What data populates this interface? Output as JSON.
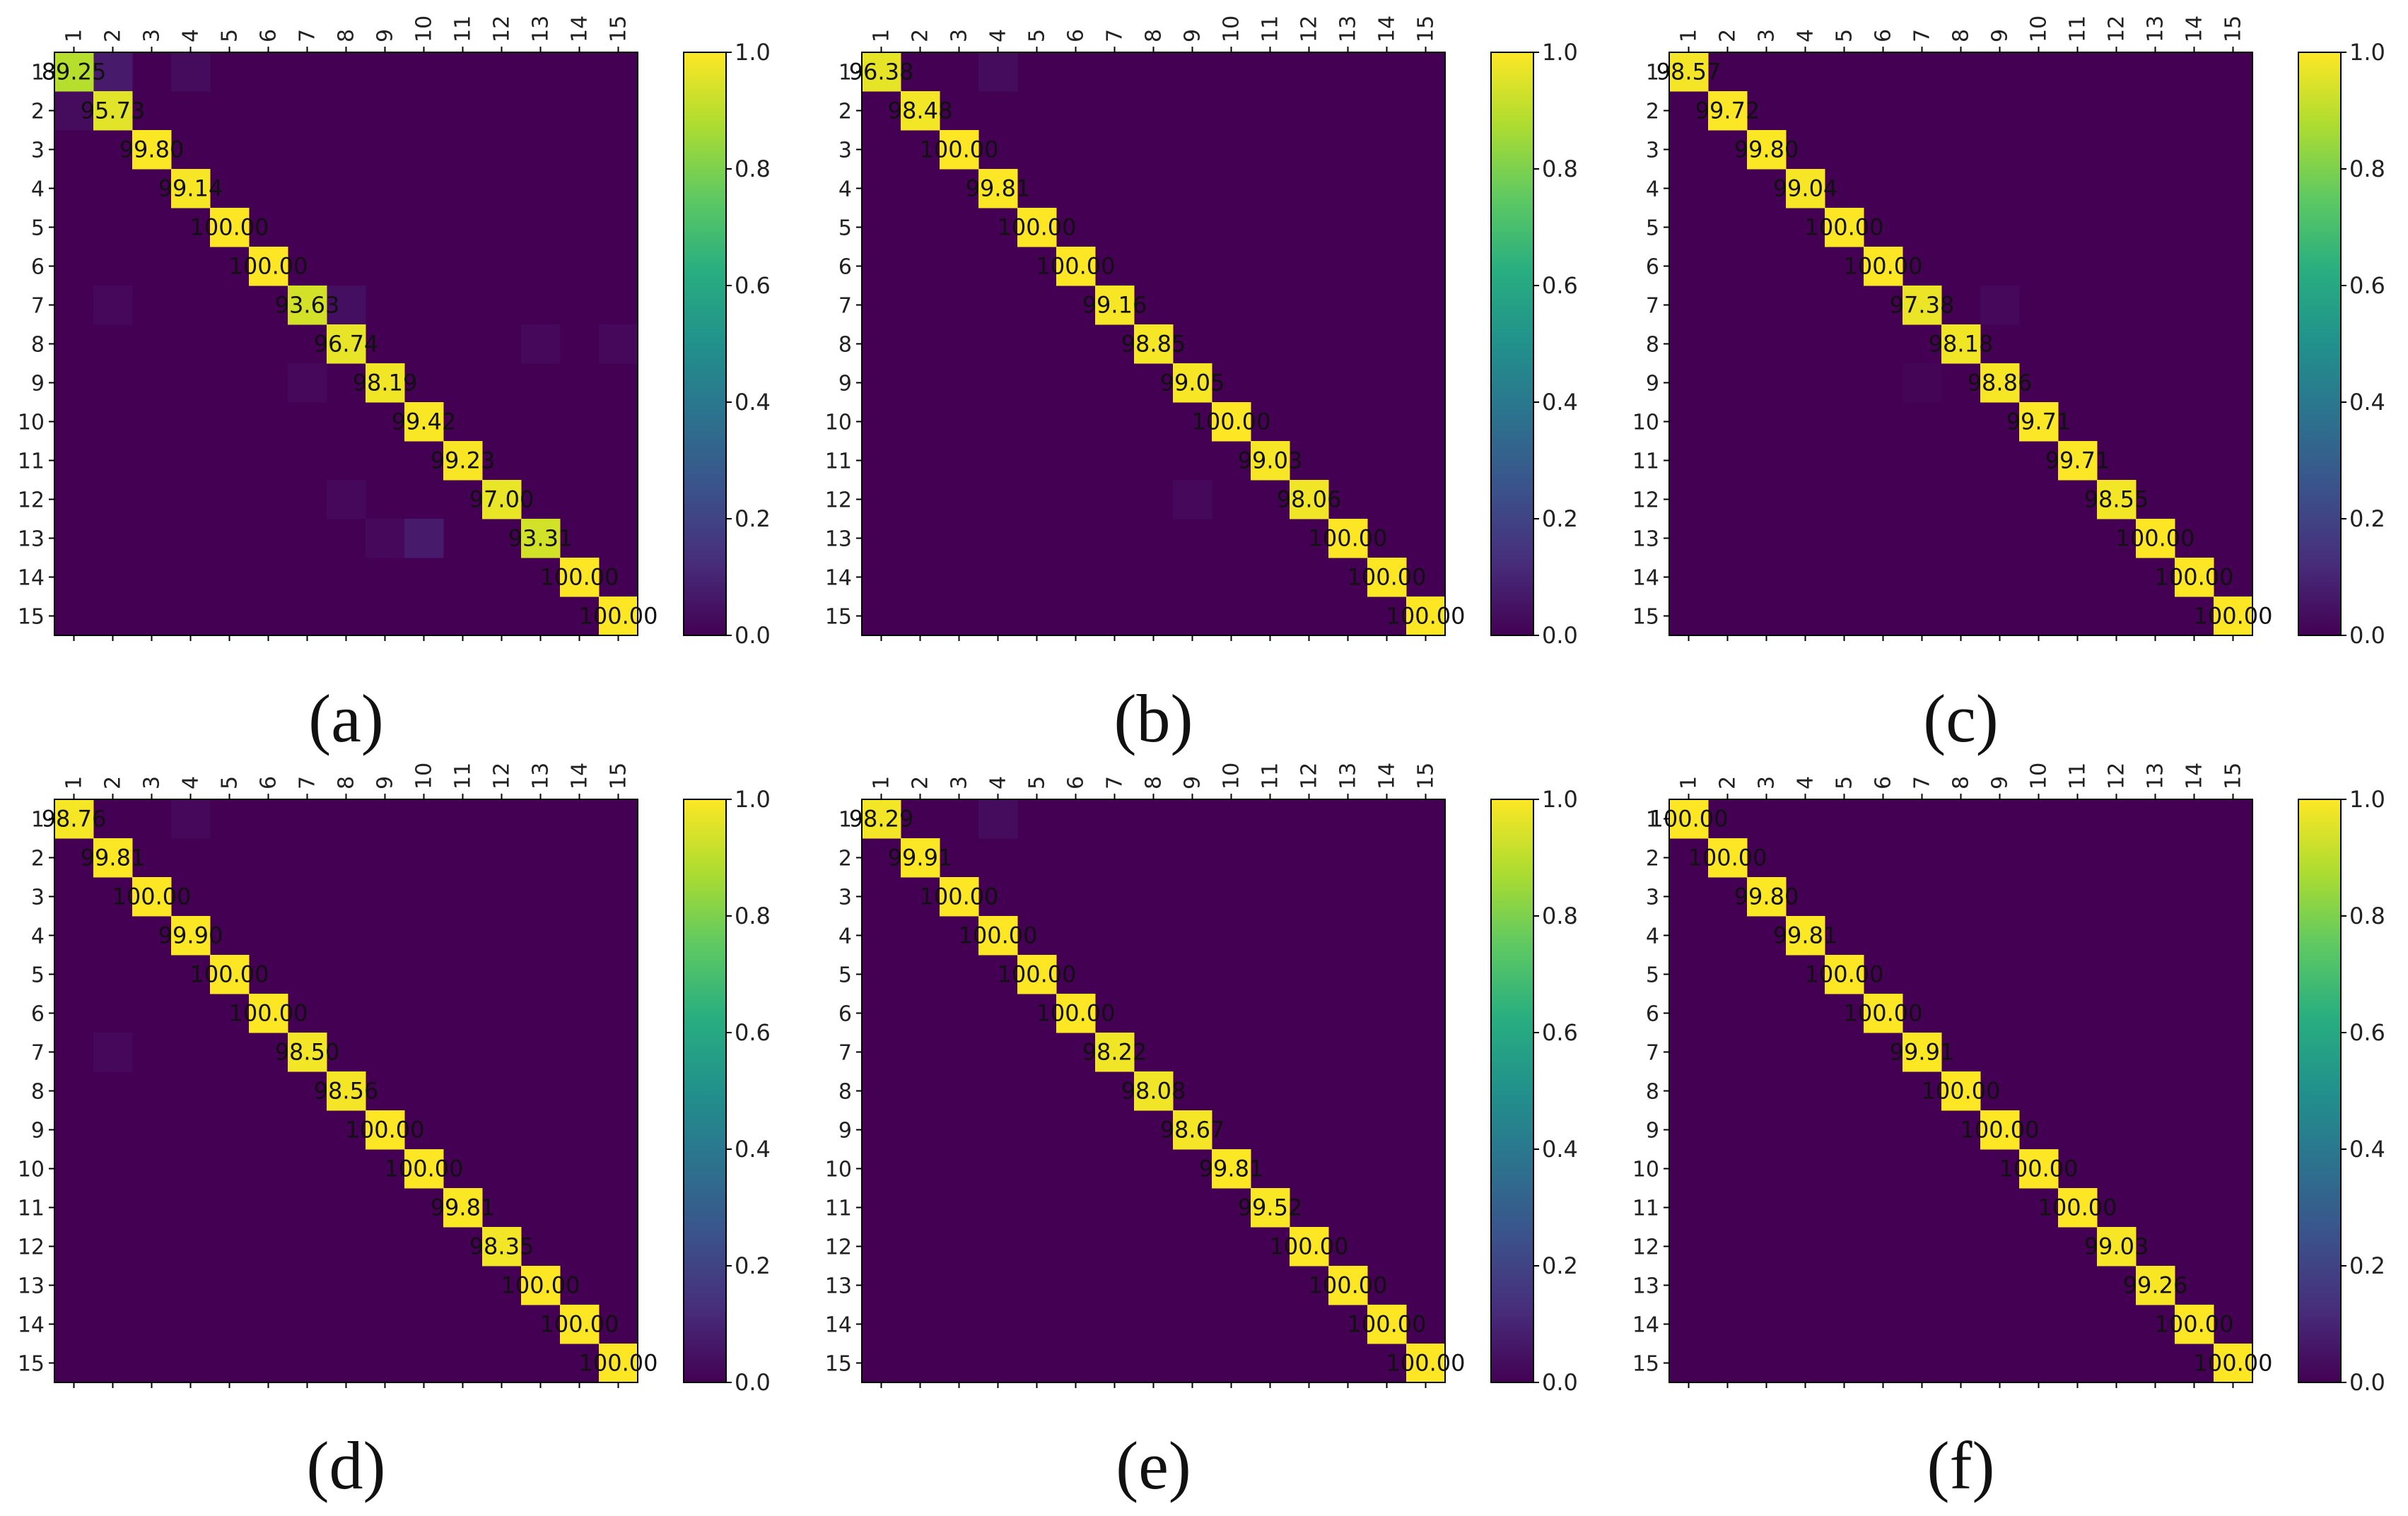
{
  "chart_data": [
    {
      "type": "heatmap",
      "panel_label": "(a)",
      "x_ticks": [
        "1",
        "2",
        "3",
        "4",
        "5",
        "6",
        "7",
        "8",
        "9",
        "10",
        "11",
        "12",
        "13",
        "14",
        "15"
      ],
      "y_ticks": [
        "1",
        "2",
        "3",
        "4",
        "5",
        "6",
        "7",
        "8",
        "9",
        "10",
        "11",
        "12",
        "13",
        "14",
        "15"
      ],
      "diagonal_text": [
        "89.25",
        "95.73",
        "99.80",
        "99.14",
        "100.00",
        "100.00",
        "93.63",
        "96.74",
        "98.19",
        "99.42",
        "99.23",
        "97.00",
        "93.31",
        "100.00",
        "100.00"
      ],
      "diagonal_values": [
        0.8925,
        0.9573,
        0.998,
        0.9914,
        1.0,
        1.0,
        0.9363,
        0.9674,
        0.9819,
        0.9942,
        0.9923,
        0.97,
        0.9331,
        1.0,
        1.0
      ],
      "off_diagonal": [
        {
          "row": 1,
          "col": 2,
          "value": 0.07
        },
        {
          "row": 1,
          "col": 4,
          "value": 0.03
        },
        {
          "row": 2,
          "col": 1,
          "value": 0.03
        },
        {
          "row": 7,
          "col": 2,
          "value": 0.02
        },
        {
          "row": 7,
          "col": 8,
          "value": 0.04
        },
        {
          "row": 8,
          "col": 13,
          "value": 0.02
        },
        {
          "row": 8,
          "col": 15,
          "value": 0.02
        },
        {
          "row": 9,
          "col": 7,
          "value": 0.02
        },
        {
          "row": 12,
          "col": 8,
          "value": 0.02
        },
        {
          "row": 13,
          "col": 9,
          "value": 0.02
        },
        {
          "row": 13,
          "col": 10,
          "value": 0.07
        }
      ],
      "colorbar": {
        "min": 0.0,
        "max": 1.0,
        "ticks": [
          "0.0",
          "0.2",
          "0.4",
          "0.6",
          "0.8",
          "1.0"
        ]
      }
    },
    {
      "type": "heatmap",
      "panel_label": "(b)",
      "x_ticks": [
        "1",
        "2",
        "3",
        "4",
        "5",
        "6",
        "7",
        "8",
        "9",
        "10",
        "11",
        "12",
        "13",
        "14",
        "15"
      ],
      "y_ticks": [
        "1",
        "2",
        "3",
        "4",
        "5",
        "6",
        "7",
        "8",
        "9",
        "10",
        "11",
        "12",
        "13",
        "14",
        "15"
      ],
      "diagonal_text": [
        "96.38",
        "98.48",
        "100.00",
        "99.81",
        "100.00",
        "100.00",
        "99.16",
        "98.85",
        "99.05",
        "100.00",
        "99.03",
        "98.06",
        "100.00",
        "100.00",
        "100.00"
      ],
      "diagonal_values": [
        0.9638,
        0.9848,
        1.0,
        0.9981,
        1.0,
        1.0,
        0.9916,
        0.9885,
        0.9905,
        1.0,
        0.9903,
        0.9806,
        1.0,
        1.0,
        1.0
      ],
      "off_diagonal": [
        {
          "row": 1,
          "col": 4,
          "value": 0.03
        },
        {
          "row": 12,
          "col": 9,
          "value": 0.02
        }
      ],
      "colorbar": {
        "min": 0.0,
        "max": 1.0,
        "ticks": [
          "0.0",
          "0.2",
          "0.4",
          "0.6",
          "0.8",
          "1.0"
        ]
      }
    },
    {
      "type": "heatmap",
      "panel_label": "(c)",
      "x_ticks": [
        "1",
        "2",
        "3",
        "4",
        "5",
        "6",
        "7",
        "8",
        "9",
        "10",
        "11",
        "12",
        "13",
        "14",
        "15"
      ],
      "y_ticks": [
        "1",
        "2",
        "3",
        "4",
        "5",
        "6",
        "7",
        "8",
        "9",
        "10",
        "11",
        "12",
        "13",
        "14",
        "15"
      ],
      "diagonal_text": [
        "98.57",
        "99.72",
        "99.80",
        "99.04",
        "100.00",
        "100.00",
        "97.38",
        "98.18",
        "98.86",
        "99.71",
        "99.71",
        "98.55",
        "100.00",
        "100.00",
        "100.00"
      ],
      "diagonal_values": [
        0.9857,
        0.9972,
        0.998,
        0.9904,
        1.0,
        1.0,
        0.9738,
        0.9818,
        0.9886,
        0.9971,
        0.9971,
        0.9855,
        1.0,
        1.0,
        1.0
      ],
      "off_diagonal": [
        {
          "row": 7,
          "col": 9,
          "value": 0.02
        },
        {
          "row": 9,
          "col": 7,
          "value": 0.01
        }
      ],
      "colorbar": {
        "min": 0.0,
        "max": 1.0,
        "ticks": [
          "0.0",
          "0.2",
          "0.4",
          "0.6",
          "0.8",
          "1.0"
        ]
      }
    },
    {
      "type": "heatmap",
      "panel_label": "(d)",
      "x_ticks": [
        "1",
        "2",
        "3",
        "4",
        "5",
        "6",
        "7",
        "8",
        "9",
        "10",
        "11",
        "12",
        "13",
        "14",
        "15"
      ],
      "y_ticks": [
        "1",
        "2",
        "3",
        "4",
        "5",
        "6",
        "7",
        "8",
        "9",
        "10",
        "11",
        "12",
        "13",
        "14",
        "15"
      ],
      "diagonal_text": [
        "98.76",
        "99.81",
        "100.00",
        "99.90",
        "100.00",
        "100.00",
        "98.50",
        "98.56",
        "100.00",
        "100.00",
        "99.81",
        "98.35",
        "100.00",
        "100.00",
        "100.00"
      ],
      "diagonal_values": [
        0.9876,
        0.9981,
        1.0,
        0.999,
        1.0,
        1.0,
        0.985,
        0.9856,
        1.0,
        1.0,
        0.9981,
        0.9835,
        1.0,
        1.0,
        1.0
      ],
      "off_diagonal": [
        {
          "row": 1,
          "col": 4,
          "value": 0.02
        },
        {
          "row": 7,
          "col": 2,
          "value": 0.02
        }
      ],
      "colorbar": {
        "min": 0.0,
        "max": 1.0,
        "ticks": [
          "0.0",
          "0.2",
          "0.4",
          "0.6",
          "0.8",
          "1.0"
        ]
      }
    },
    {
      "type": "heatmap",
      "panel_label": "(e)",
      "x_ticks": [
        "1",
        "2",
        "3",
        "4",
        "5",
        "6",
        "7",
        "8",
        "9",
        "10",
        "11",
        "12",
        "13",
        "14",
        "15"
      ],
      "y_ticks": [
        "1",
        "2",
        "3",
        "4",
        "5",
        "6",
        "7",
        "8",
        "9",
        "10",
        "11",
        "12",
        "13",
        "14",
        "15"
      ],
      "diagonal_text": [
        "98.29",
        "99.91",
        "100.00",
        "100.00",
        "100.00",
        "100.00",
        "98.22",
        "98.08",
        "98.67",
        "99.81",
        "99.52",
        "100.00",
        "100.00",
        "100.00",
        "100.00"
      ],
      "diagonal_values": [
        0.9829,
        0.9991,
        1.0,
        1.0,
        1.0,
        1.0,
        0.9822,
        0.9808,
        0.9867,
        0.9981,
        0.9952,
        1.0,
        1.0,
        1.0,
        1.0
      ],
      "off_diagonal": [
        {
          "row": 1,
          "col": 4,
          "value": 0.03
        }
      ],
      "colorbar": {
        "min": 0.0,
        "max": 1.0,
        "ticks": [
          "0.0",
          "0.2",
          "0.4",
          "0.6",
          "0.8",
          "1.0"
        ]
      }
    },
    {
      "type": "heatmap",
      "panel_label": "(f)",
      "x_ticks": [
        "1",
        "2",
        "3",
        "4",
        "5",
        "6",
        "7",
        "8",
        "9",
        "10",
        "11",
        "12",
        "13",
        "14",
        "15"
      ],
      "y_ticks": [
        "1",
        "2",
        "3",
        "4",
        "5",
        "6",
        "7",
        "8",
        "9",
        "10",
        "11",
        "12",
        "13",
        "14",
        "15"
      ],
      "diagonal_text": [
        "100.00",
        "100.00",
        "99.80",
        "99.81",
        "100.00",
        "100.00",
        "99.91",
        "100.00",
        "100.00",
        "100.00",
        "100.00",
        "99.03",
        "99.26",
        "100.00",
        "100.00"
      ],
      "diagonal_values": [
        1.0,
        1.0,
        0.998,
        0.9981,
        1.0,
        1.0,
        0.9991,
        1.0,
        1.0,
        1.0,
        1.0,
        0.9903,
        0.9926,
        1.0,
        1.0
      ],
      "off_diagonal": [],
      "colorbar": {
        "min": 0.0,
        "max": 1.0,
        "ticks": [
          "0.0",
          "0.2",
          "0.4",
          "0.6",
          "0.8",
          "1.0"
        ]
      }
    }
  ]
}
